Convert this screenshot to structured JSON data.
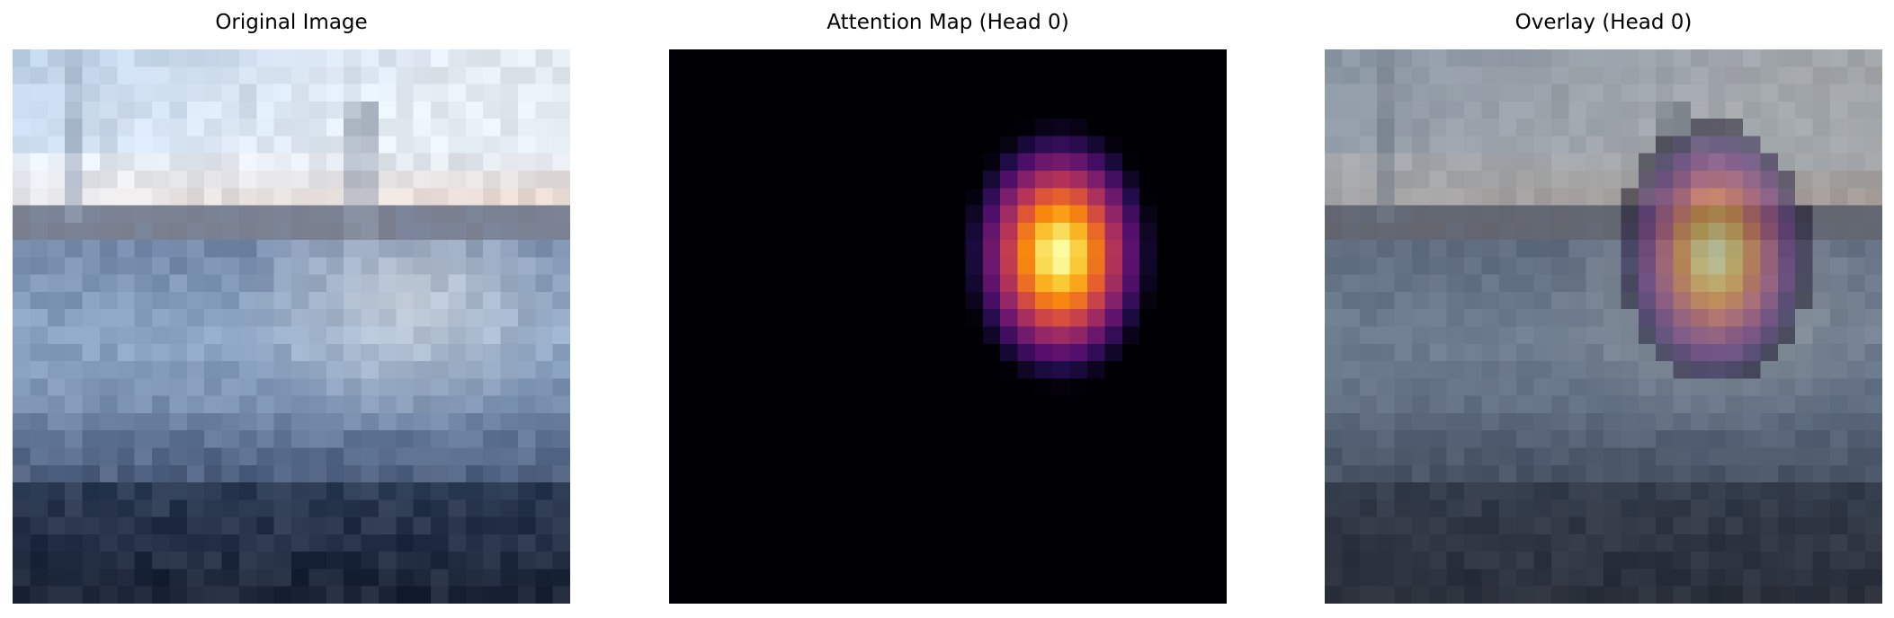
{
  "panels": {
    "original": {
      "title": "Original Image"
    },
    "attention": {
      "title": "Attention Map (Head 0)"
    },
    "overlay": {
      "title": "Overlay (Head 0)"
    }
  },
  "image": {
    "grid": 32,
    "description_colors": {
      "sky": "#e4ecf4",
      "sky_blue": "#c0d4ea",
      "horizon_warm": "#e8d6cc",
      "hull_blue": "#8ea7c6",
      "dark_water": "#1c2537"
    }
  },
  "attention": {
    "colormap": "inferno",
    "peak_row": 0.37,
    "peak_col": 0.7,
    "extent_rows": 0.5,
    "extent_cols": 0.36
  },
  "overlay": {
    "image_alpha": 0.6,
    "heat_alpha": 0.45
  }
}
